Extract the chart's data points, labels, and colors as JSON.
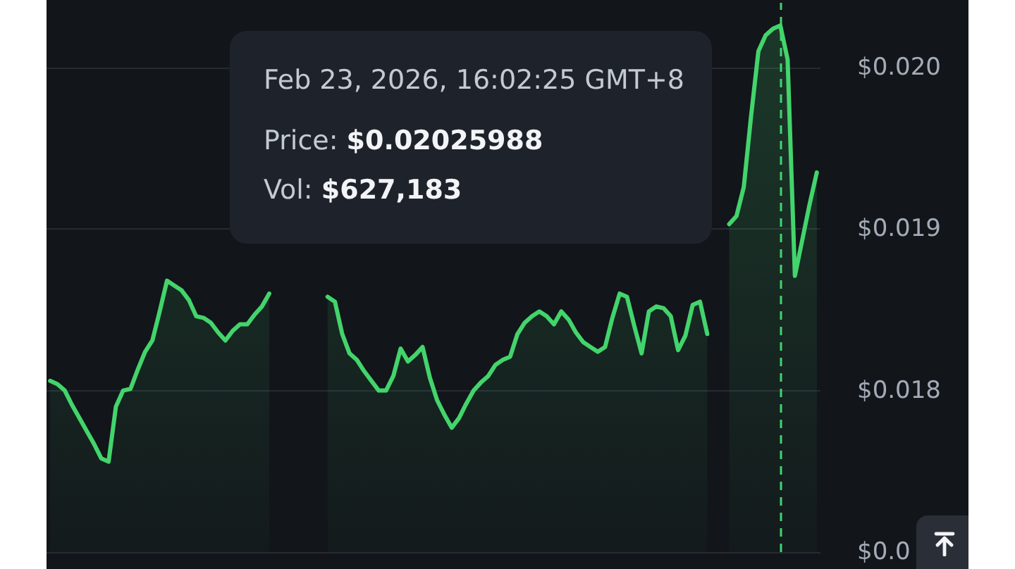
{
  "chart_data": {
    "type": "area",
    "color": "#43d46c",
    "categories": [
      null,
      null,
      null,
      null,
      null,
      null,
      null,
      null,
      null,
      null,
      null,
      null,
      null,
      null,
      null,
      null,
      null,
      null,
      null,
      null,
      null,
      null,
      null,
      null,
      null,
      null,
      null,
      null,
      null,
      null,
      null,
      null,
      null,
      null,
      null,
      null,
      null,
      null,
      null,
      null,
      null,
      null,
      null,
      null,
      null,
      null,
      null,
      null,
      null,
      null,
      null,
      null,
      null,
      null,
      null,
      null,
      null,
      null,
      null,
      null,
      null,
      null,
      null,
      null,
      null,
      null,
      null,
      null,
      null,
      null,
      null,
      null,
      null,
      null,
      null,
      null,
      null,
      null,
      null,
      null,
      null,
      null,
      null,
      null,
      null,
      null,
      null,
      null,
      null,
      null,
      null,
      null,
      null,
      null,
      null,
      null,
      null,
      null,
      null,
      null,
      null,
      null,
      null,
      null,
      null,
      null
    ],
    "values": [
      0.01806,
      0.01804,
      0.018,
      0.01791,
      0.01783,
      0.01775,
      0.01767,
      0.01758,
      0.01756,
      0.0179,
      0.018,
      0.01801,
      0.01813,
      0.01824,
      0.01831,
      0.01849,
      0.01868,
      0.01865,
      0.01862,
      0.01856,
      0.01846,
      0.01845,
      0.01842,
      0.01836,
      0.01831,
      0.01837,
      0.01841,
      0.01841,
      0.01847,
      0.01852,
      0.0186,
      null,
      null,
      null,
      null,
      null,
      null,
      null,
      0.01858,
      0.01855,
      0.01835,
      0.01823,
      0.01819,
      0.01812,
      0.01806,
      0.018,
      0.018,
      0.01809,
      0.01826,
      0.01818,
      0.01822,
      0.01827,
      0.01808,
      0.01794,
      0.01785,
      0.01777,
      0.01783,
      0.01792,
      0.018,
      0.01805,
      0.01809,
      0.01816,
      0.01819,
      0.01821,
      0.01835,
      0.01842,
      0.01846,
      0.01849,
      0.01846,
      0.01841,
      0.01849,
      0.01844,
      0.01836,
      0.0183,
      0.01827,
      0.01824,
      0.01827,
      0.01845,
      0.0186,
      0.01858,
      0.0184,
      0.01823,
      0.01849,
      0.01852,
      0.01851,
      0.01846,
      0.01825,
      0.01834,
      0.01853,
      0.01855,
      0.01835,
      null,
      null,
      0.01903,
      0.01908,
      0.01926,
      0.0197,
      0.0201,
      0.0202,
      0.02024,
      0.02025988,
      0.02005,
      0.01871,
      0.01893,
      0.01915,
      0.01935
    ],
    "ylim": [
      0.017,
      0.0204
    ],
    "yticks": [
      {
        "value": 0.017,
        "label": "$0.0"
      },
      {
        "value": 0.018,
        "label": "$0.018"
      },
      {
        "value": 0.019,
        "label": "$0.019"
      },
      {
        "value": 0.02,
        "label": "$0.020"
      }
    ],
    "grid": "y",
    "tick_labels": "y",
    "annotations": [
      "Feb 23, 2026, 16:02:25 GMT+8",
      "Price: $0.02025988",
      "Vol: $627,183"
    ]
  }
}
